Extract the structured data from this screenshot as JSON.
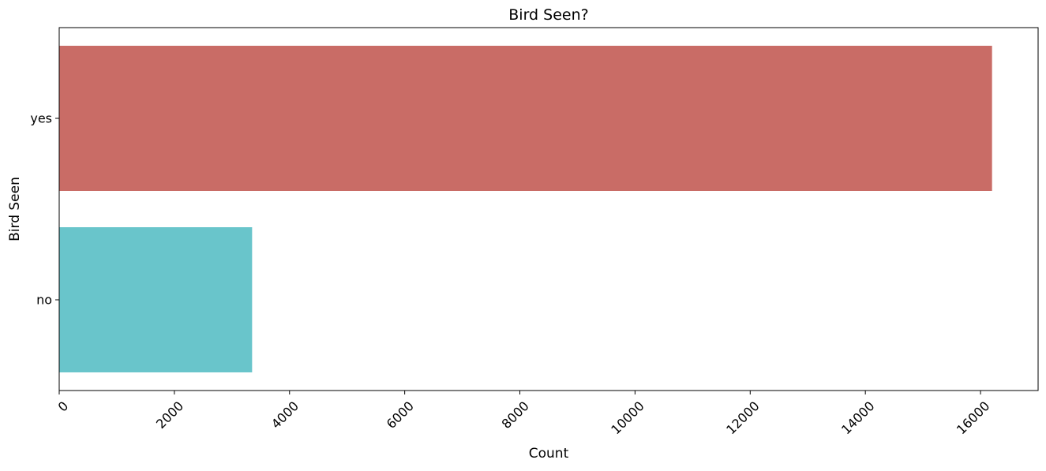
{
  "chart_data": {
    "type": "bar",
    "orientation": "horizontal",
    "title": "Bird Seen?",
    "xlabel": "Count",
    "ylabel": "Bird Seen",
    "categories": [
      "yes",
      "no"
    ],
    "values": [
      16200,
      3350
    ],
    "colors": [
      "#c96c66",
      "#69c5cb"
    ],
    "xlim": [
      0,
      17000
    ],
    "xticks": [
      0,
      2000,
      4000,
      6000,
      8000,
      10000,
      12000,
      14000,
      16000
    ],
    "xtick_rotation": 45,
    "grid": false,
    "legend": "none"
  }
}
